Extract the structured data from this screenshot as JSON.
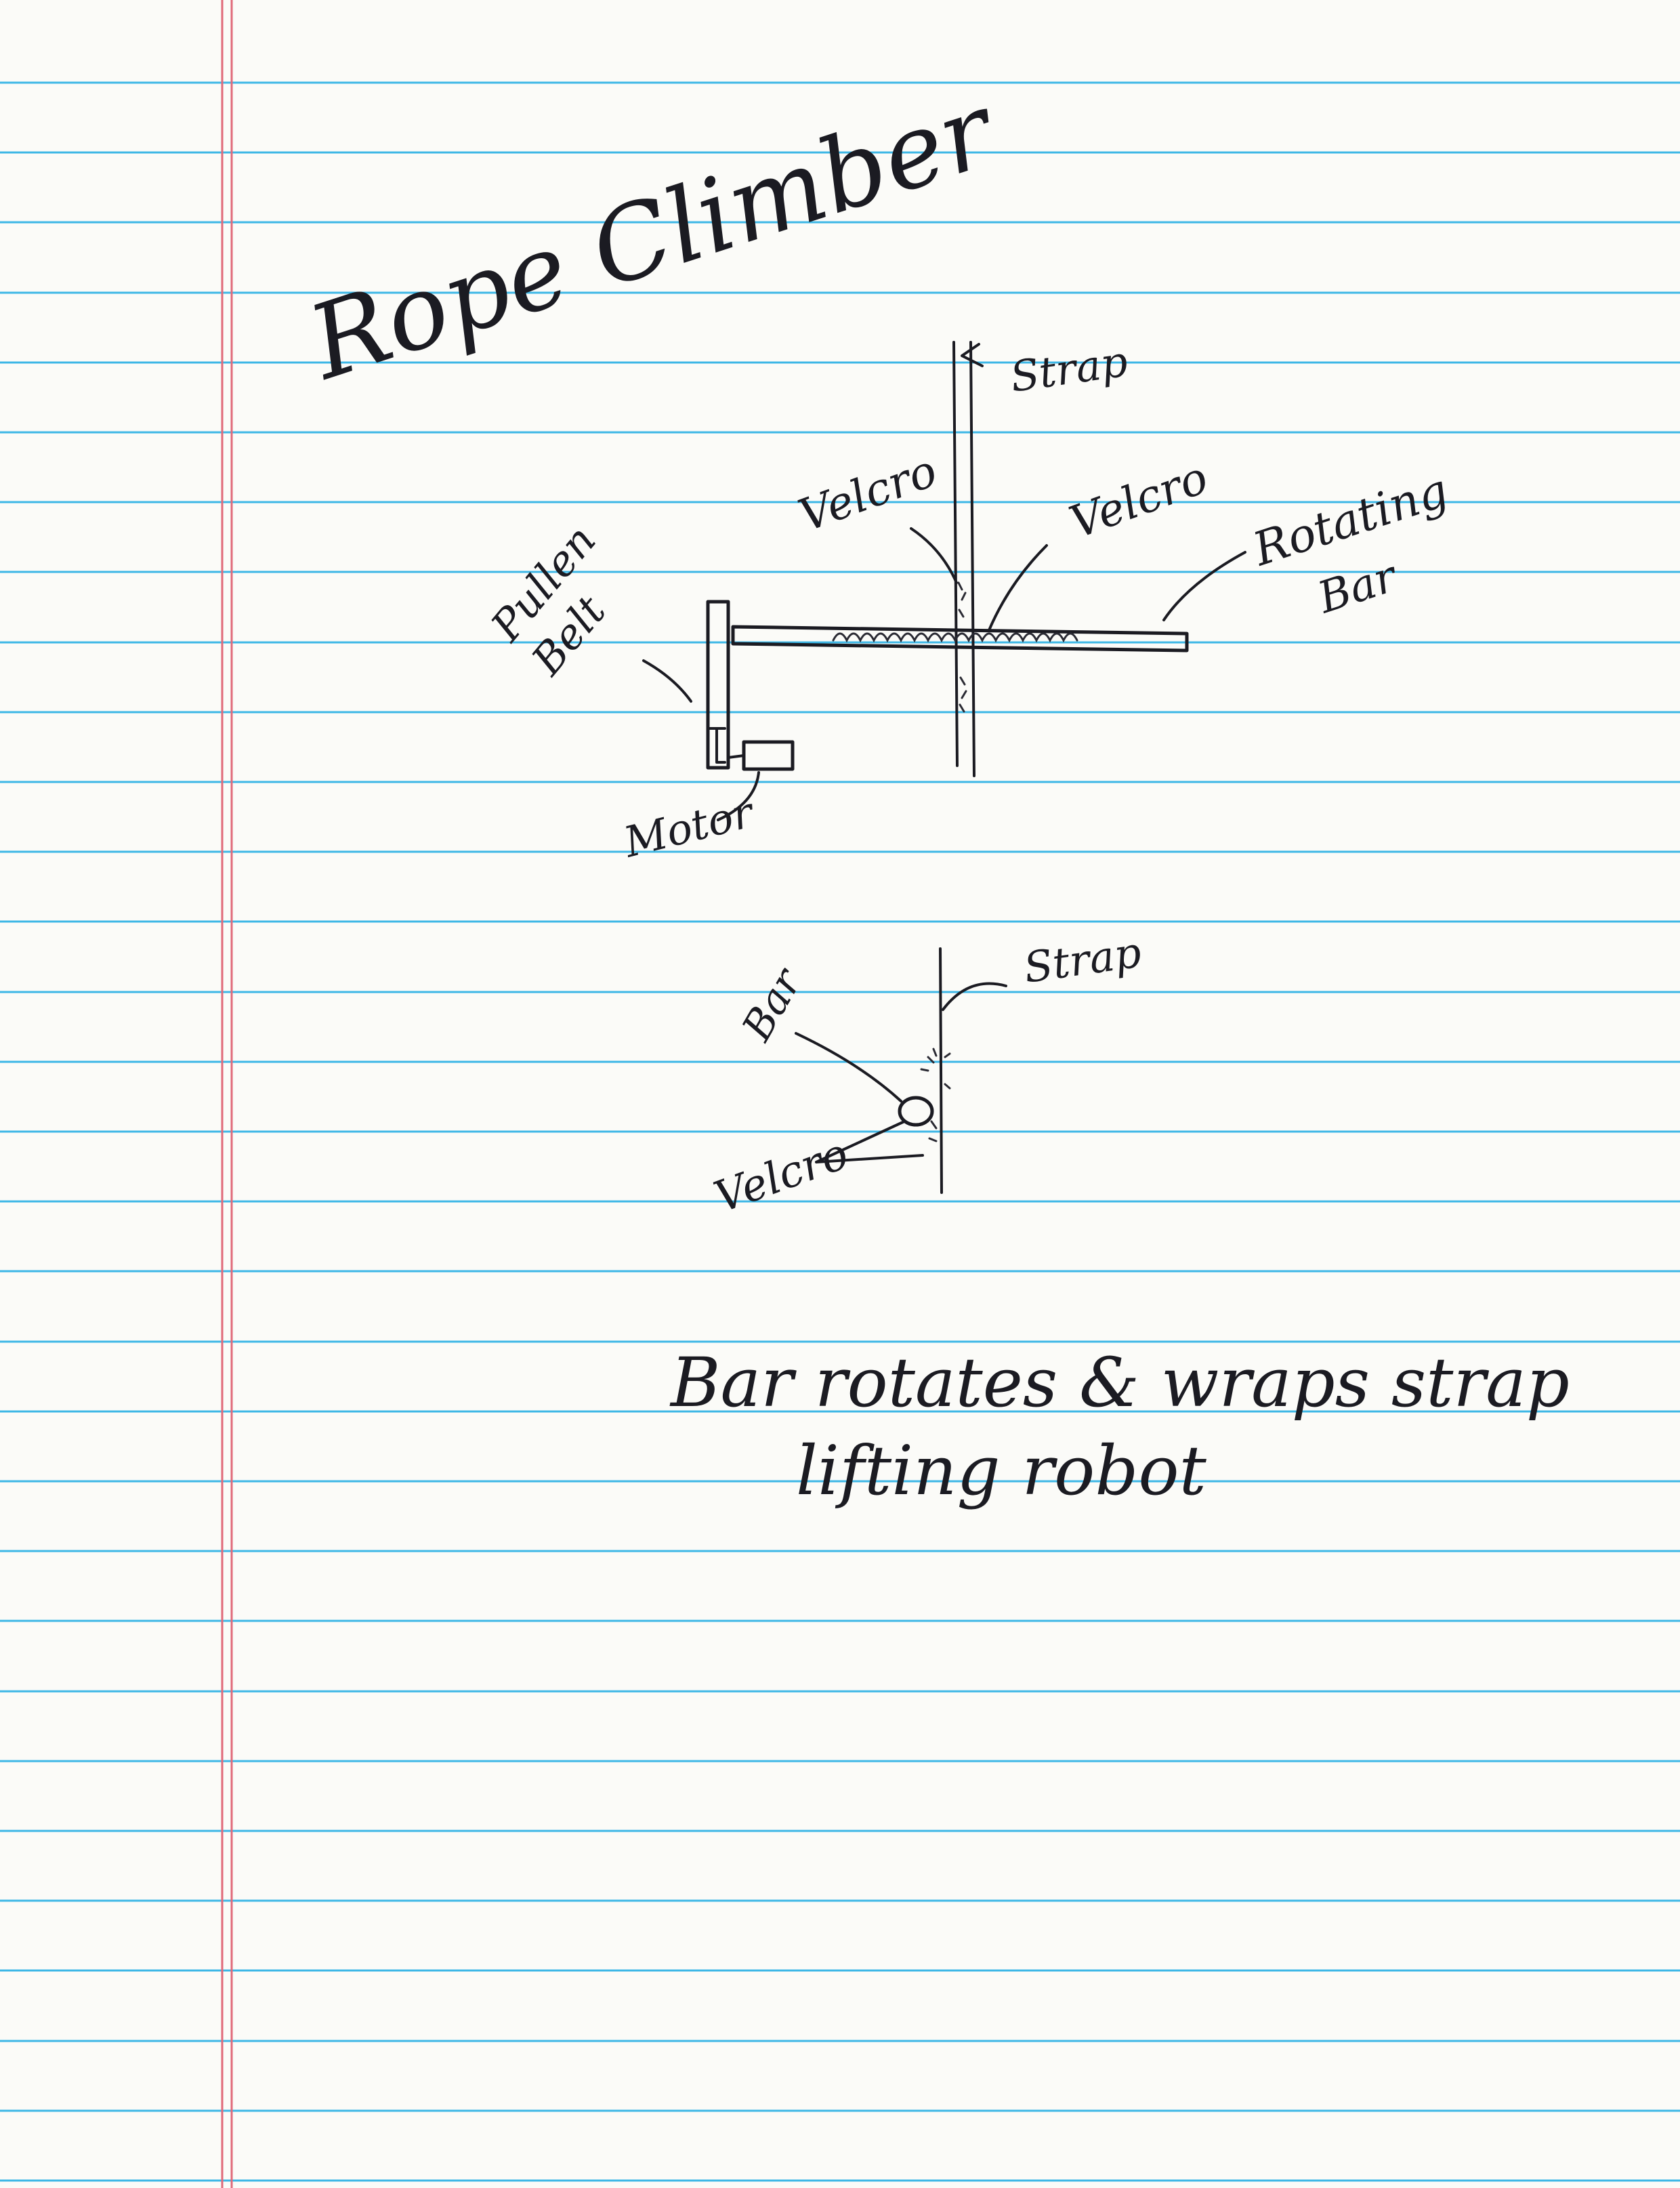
{
  "notebook": {
    "title": "Rope Climber",
    "caption_line1": "Bar rotates & wraps strap",
    "caption_line2": "lifting robot",
    "colors": {
      "paper": "#fbfbf8",
      "rule": "#3db7e6",
      "margin": "#e06a7a",
      "ink": "#1b1b22"
    }
  },
  "side_view": {
    "strap_label": "Strap",
    "velcro_left_label": "Velcro",
    "velcro_right_label": "Velcro",
    "rotating_bar_label_1": "Rotating",
    "rotating_bar_label_2": "Bar",
    "pulley_label_1": "Pullen",
    "pulley_label_2": "Belt",
    "motor_label": "Motor"
  },
  "end_view": {
    "strap_label": "Strap",
    "bar_label": "Bar",
    "velcro_label": "Velcro"
  }
}
